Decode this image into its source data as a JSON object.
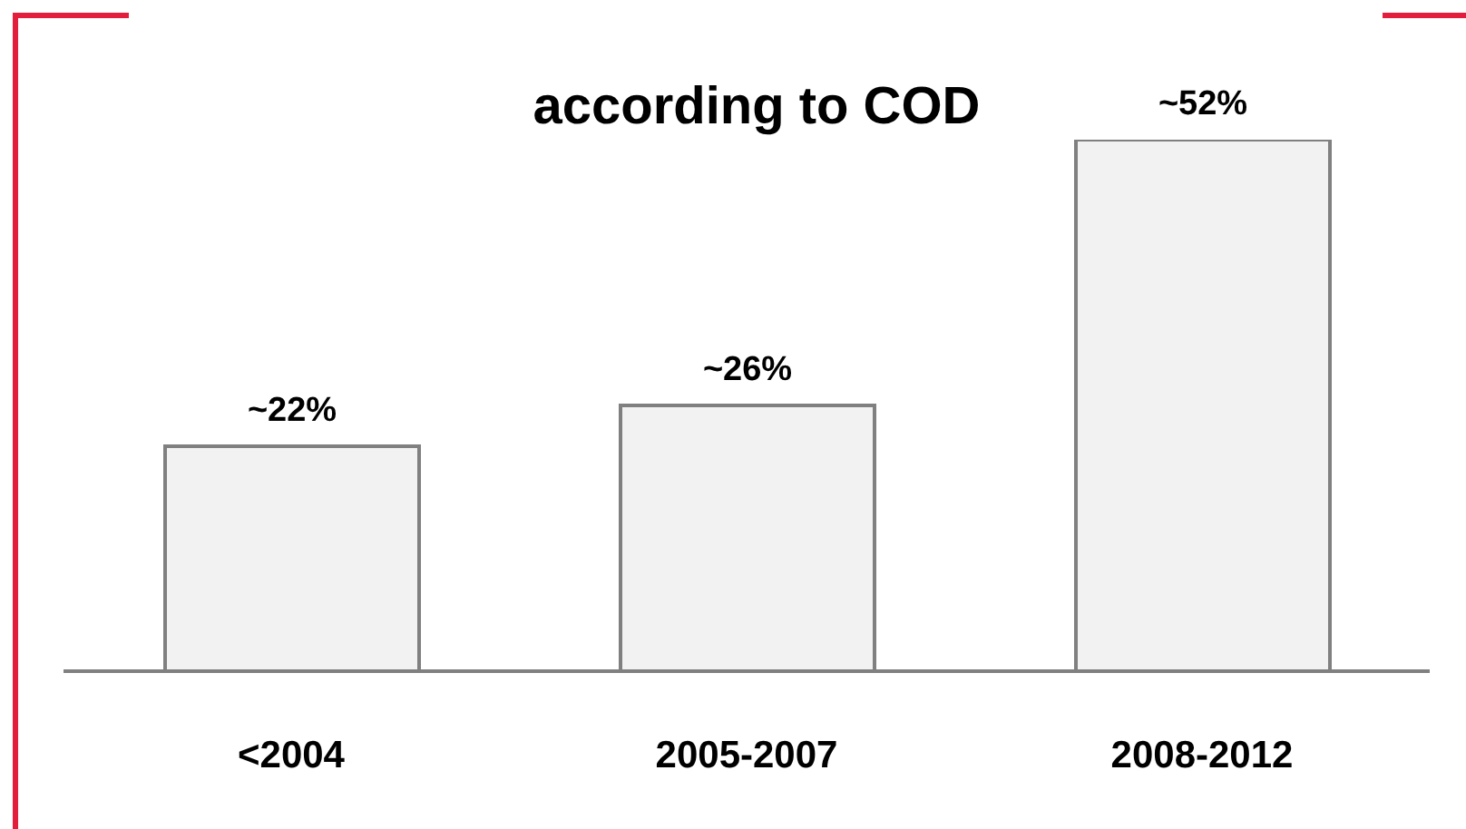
{
  "chart_data": {
    "type": "bar",
    "title": "according to COD",
    "categories": [
      "<2004",
      "2005-2007",
      "2008-2012"
    ],
    "values": [
      22,
      26,
      52
    ],
    "value_labels": [
      "~22%",
      "~26%",
      "~52%"
    ],
    "color": "#f2f2f2",
    "grid": false,
    "legend": false
  }
}
